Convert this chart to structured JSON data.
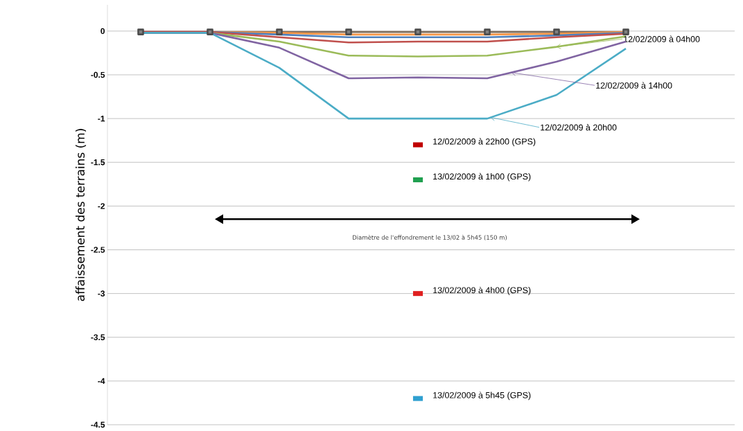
{
  "chart_data": {
    "type": "line",
    "ylabel": "affaissement des terrains (m)",
    "categories": [
      null,
      null,
      null,
      null,
      null,
      null,
      null,
      null
    ],
    "ylim": [
      -4.5,
      0.3
    ],
    "yticks": [
      0,
      -0.5,
      -1,
      -1.5,
      -2,
      -2.5,
      -3,
      -3.5,
      -4,
      -4.5
    ],
    "grid": "y",
    "annotations": [
      "Diamètre de l'effondrement le 13/02 à 5h45  (150 m)"
    ],
    "series": [
      {
        "color": "#7f6f5f",
        "marker": "square",
        "values": [
          -0.01,
          -0.01,
          -0.01,
          -0.01,
          -0.01,
          -0.01,
          -0.01,
          -0.01
        ]
      },
      {
        "color": "#f79646",
        "values": [
          -0.01,
          -0.01,
          -0.02,
          -0.04,
          -0.04,
          -0.04,
          -0.03,
          -0.01
        ]
      },
      {
        "color": "#4f81bd",
        "values": [
          -0.01,
          -0.01,
          -0.04,
          -0.07,
          -0.07,
          -0.07,
          -0.05,
          -0.02
        ]
      },
      {
        "color": "#c0504d",
        "values": [
          -0.01,
          -0.01,
          -0.07,
          -0.13,
          -0.12,
          -0.12,
          -0.07,
          -0.03
        ]
      },
      {
        "name": "12/02/2009 à 04h00",
        "color": "#9bbb59",
        "values": [
          -0.02,
          -0.02,
          -0.12,
          -0.28,
          -0.29,
          -0.28,
          -0.18,
          -0.06
        ]
      },
      {
        "name": "12/02/2009 à 14h00",
        "color": "#8064a2",
        "values": [
          -0.02,
          -0.02,
          -0.19,
          -0.54,
          -0.53,
          -0.54,
          -0.35,
          -0.12
        ]
      },
      {
        "name": "12/02/2009 à 20h00",
        "color": "#4bacc6",
        "values": [
          -0.02,
          -0.02,
          -0.42,
          -1.0,
          -1.0,
          -1.0,
          -0.73,
          -0.2
        ]
      },
      {
        "type": "scatter",
        "name": "12/02/2009 à 22h00 (GPS)",
        "color": "#c00000",
        "marker": "square",
        "values": [
          null,
          null,
          null,
          null,
          -1.3,
          null,
          null,
          null
        ]
      },
      {
        "type": "scatter",
        "name": "13/02/2009 à 1h00 (GPS)",
        "color": "#20a050",
        "marker": "square",
        "values": [
          null,
          null,
          null,
          null,
          -1.7,
          null,
          null,
          null
        ]
      },
      {
        "type": "scatter",
        "name": "13/02/2009 à 4h00 (GPS)",
        "color": "#e02020",
        "marker": "square",
        "values": [
          null,
          null,
          null,
          null,
          -3.0,
          null,
          null,
          null
        ]
      },
      {
        "type": "scatter",
        "name": "13/02/2009 à 5h45 (GPS)",
        "color": "#30a0d0",
        "marker": "square",
        "values": [
          null,
          null,
          null,
          null,
          -4.2,
          null,
          null,
          null
        ]
      }
    ]
  }
}
